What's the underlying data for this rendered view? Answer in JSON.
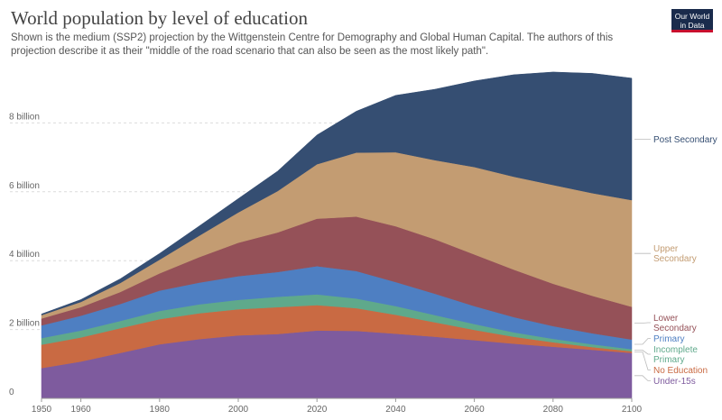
{
  "header": {
    "title": "World population by level of education",
    "subtitle": "Shown is the medium (SSP2) projection by the Wittgenstein Centre for Demography and Global Human Capital. The authors of this projection describe it as their \"middle of the road scenario that can also be seen as the most likely path\".",
    "logo_line1": "Our World",
    "logo_line2": "in Data"
  },
  "chart_data": {
    "type": "area",
    "stacked": true,
    "x": [
      1950,
      1960,
      1970,
      1980,
      1990,
      2000,
      2010,
      2020,
      2030,
      2040,
      2050,
      2060,
      2070,
      2080,
      2090,
      2100
    ],
    "xticks": [
      1950,
      1960,
      1980,
      2000,
      2020,
      2040,
      2060,
      2080,
      2100
    ],
    "xtick_labels": [
      "1950",
      "1960",
      "1980",
      "2000",
      "2020",
      "2040",
      "2060",
      "2080",
      "2100"
    ],
    "yticks": [
      0,
      2,
      4,
      6,
      8
    ],
    "ytick_labels": [
      "0",
      "2 billion",
      "4 billion",
      "6 billion",
      "8 billion"
    ],
    "ylim": [
      0,
      10
    ],
    "xlim": [
      1950,
      2100
    ],
    "units": "billion",
    "series": [
      {
        "name": "Under-15s",
        "color": "#7e5b9e",
        "values": [
          0.88,
          1.07,
          1.32,
          1.57,
          1.72,
          1.83,
          1.87,
          1.97,
          1.96,
          1.88,
          1.79,
          1.69,
          1.59,
          1.5,
          1.41,
          1.32
        ]
      },
      {
        "name": "No Education",
        "color": "#c96a43",
        "values": [
          0.68,
          0.7,
          0.72,
          0.73,
          0.75,
          0.76,
          0.78,
          0.74,
          0.66,
          0.55,
          0.42,
          0.3,
          0.2,
          0.13,
          0.08,
          0.05
        ]
      },
      {
        "name": "Incomplete Primary",
        "color": "#5fa98b",
        "values": [
          0.19,
          0.2,
          0.21,
          0.24,
          0.26,
          0.27,
          0.3,
          0.31,
          0.28,
          0.25,
          0.21,
          0.17,
          0.13,
          0.1,
          0.08,
          0.06
        ]
      },
      {
        "name": "Primary",
        "color": "#4e7fc2",
        "values": [
          0.37,
          0.43,
          0.49,
          0.59,
          0.63,
          0.69,
          0.72,
          0.82,
          0.8,
          0.7,
          0.62,
          0.52,
          0.44,
          0.37,
          0.32,
          0.28
        ]
      },
      {
        "name": "Lower Secondary",
        "color": "#955158",
        "values": [
          0.2,
          0.25,
          0.35,
          0.5,
          0.74,
          0.97,
          1.15,
          1.38,
          1.58,
          1.62,
          1.58,
          1.5,
          1.38,
          1.23,
          1.09,
          0.95
        ]
      },
      {
        "name": "Upper Secondary",
        "color": "#c39c72",
        "values": [
          0.1,
          0.15,
          0.26,
          0.4,
          0.62,
          0.88,
          1.2,
          1.58,
          1.86,
          2.15,
          2.3,
          2.54,
          2.7,
          2.87,
          2.98,
          3.1
        ]
      },
      {
        "name": "Post Secondary",
        "color": "#354e72",
        "values": [
          0.03,
          0.07,
          0.12,
          0.18,
          0.28,
          0.4,
          0.58,
          0.85,
          1.2,
          1.65,
          2.06,
          2.5,
          2.96,
          3.28,
          3.48,
          3.54
        ]
      }
    ],
    "legend_lines": [
      [
        "Under-15s"
      ],
      [
        "No Education"
      ],
      [
        "Incomplete",
        "Primary"
      ],
      [
        "Primary"
      ],
      [
        "Lower",
        "Secondary"
      ],
      [
        "Upper",
        "Secondary"
      ],
      [
        "Post Secondary"
      ]
    ],
    "legend": "right"
  }
}
